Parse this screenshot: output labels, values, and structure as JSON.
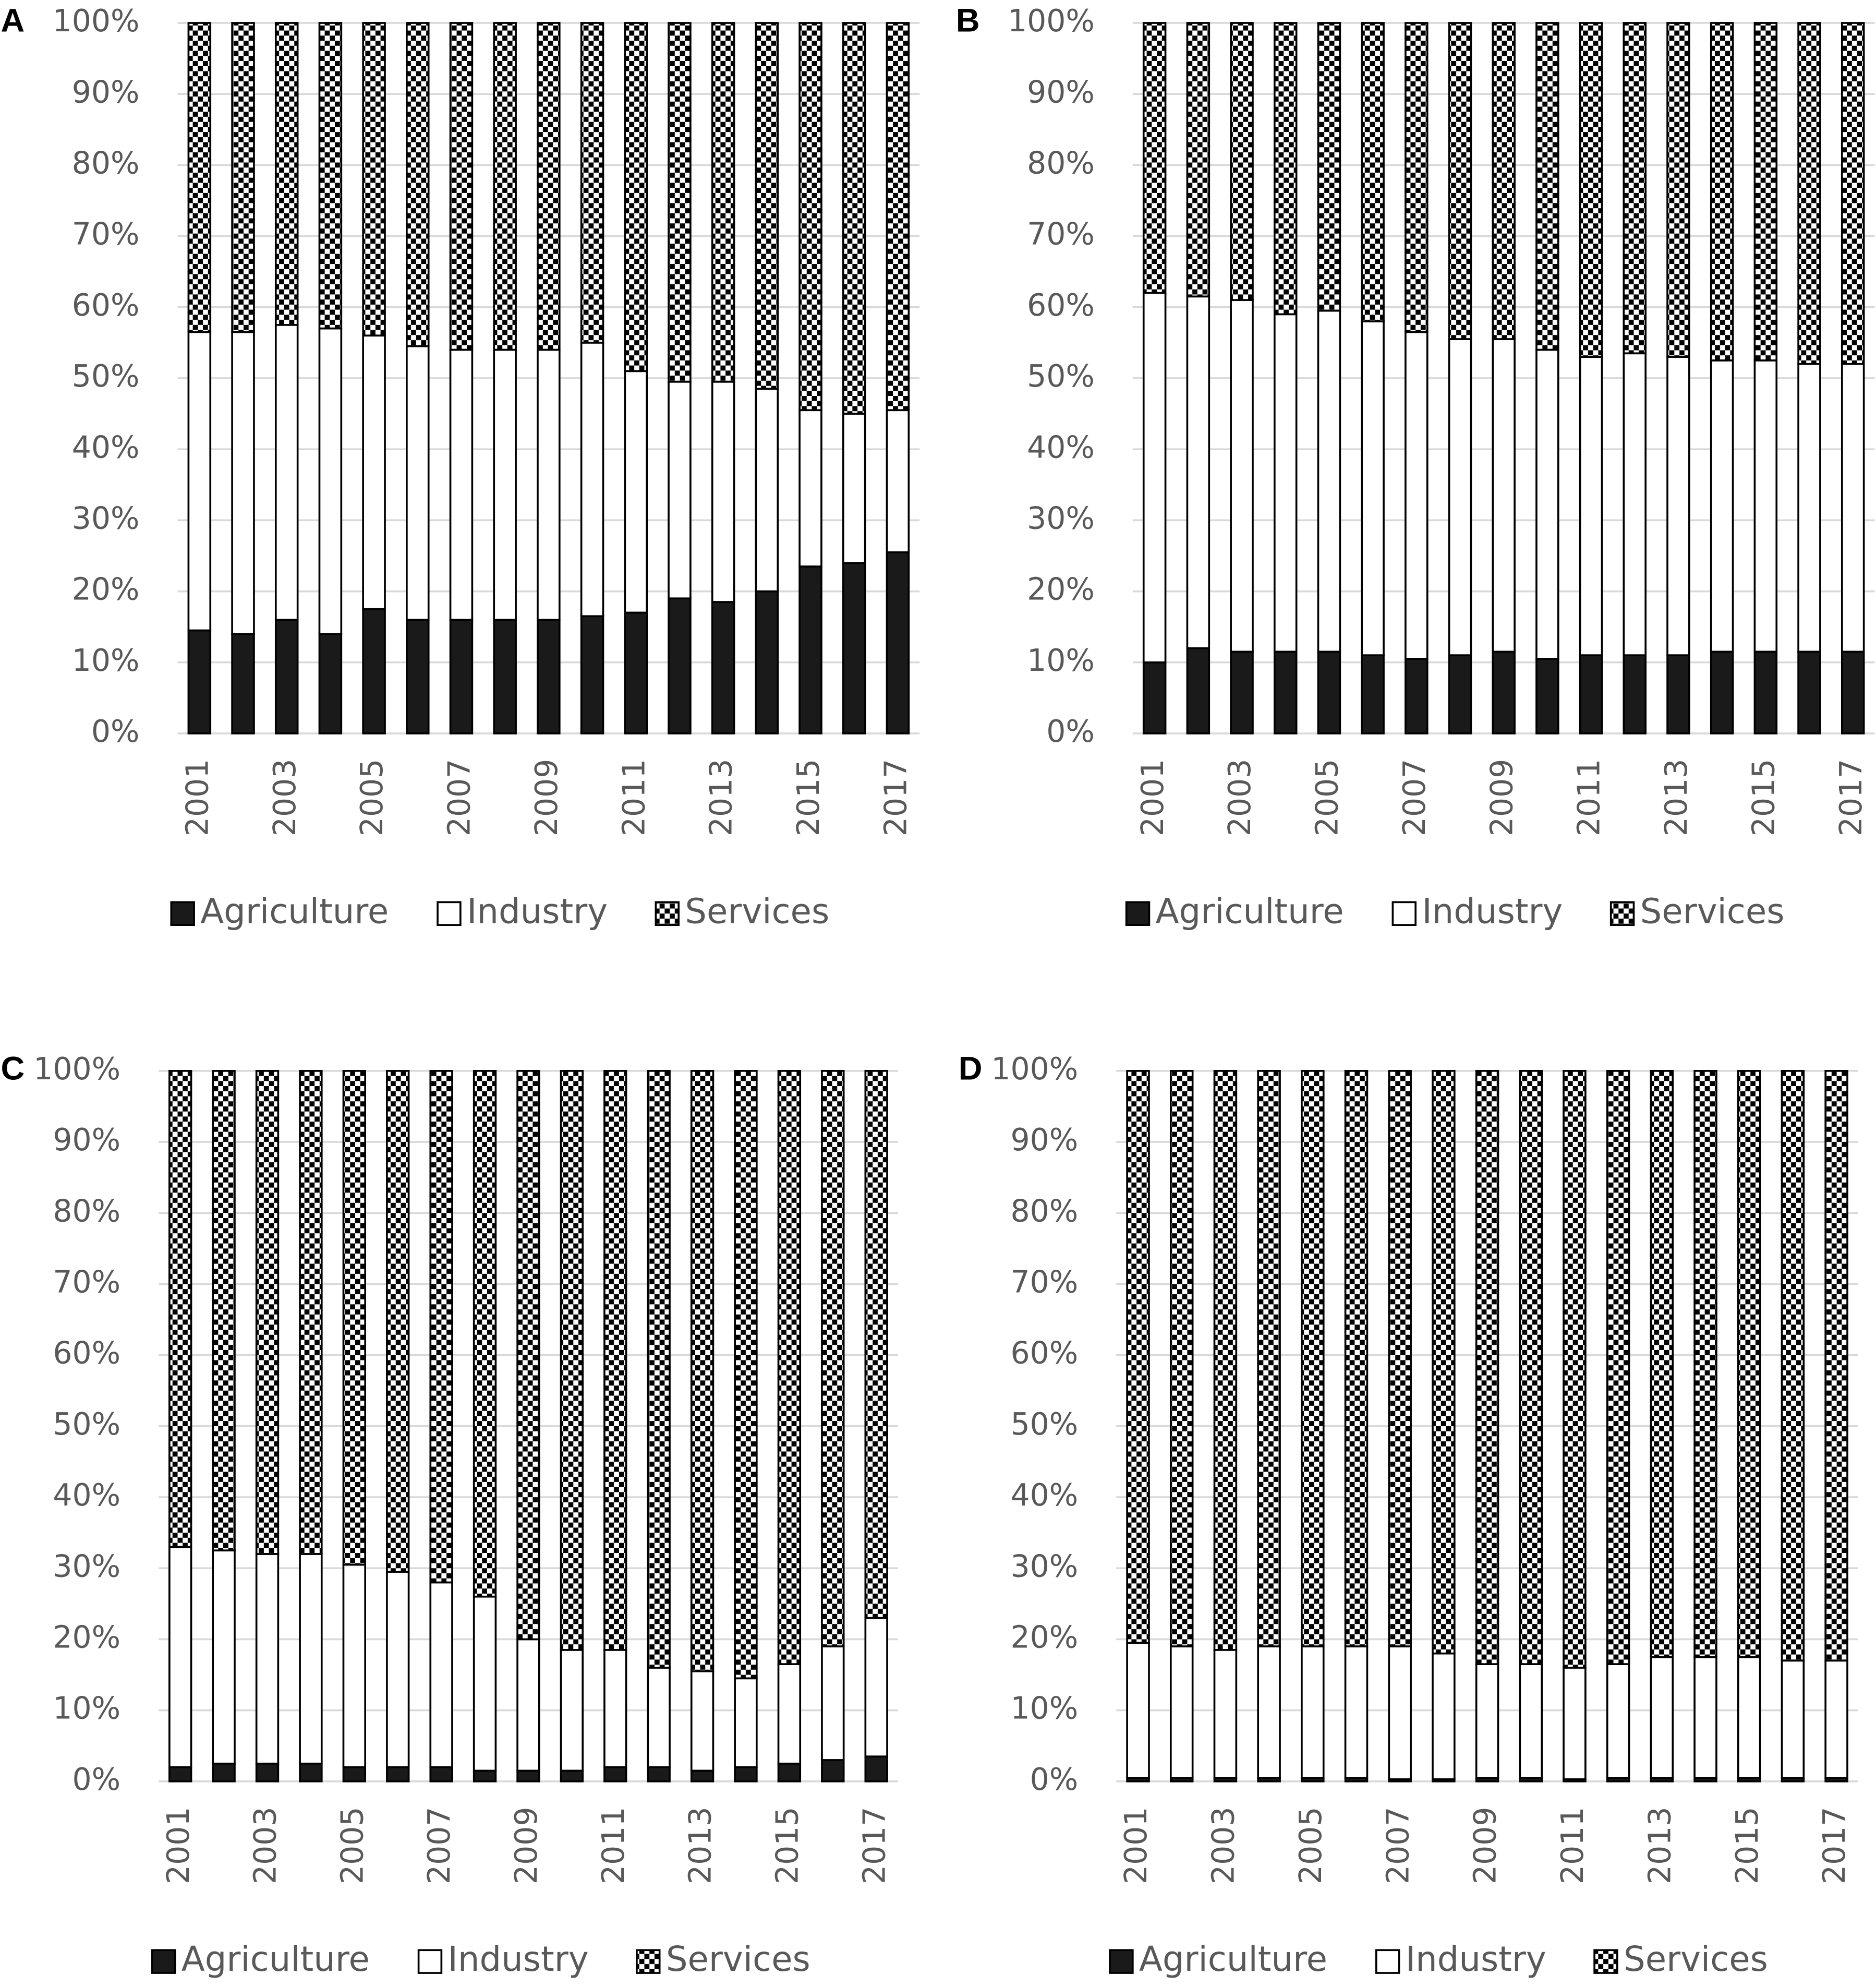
{
  "chart_data": [
    {
      "type": "bar",
      "label": "A",
      "stacked": true,
      "grid": true,
      "categories": [
        "2001",
        null,
        "2003",
        null,
        "2005",
        null,
        "2007",
        null,
        "2009",
        null,
        "2011",
        null,
        "2013",
        null,
        "2015",
        null,
        "2017"
      ],
      "ylim": [
        0,
        100
      ],
      "yticks": [
        {
          "value": 0,
          "label": "0%"
        },
        {
          "value": 10,
          "label": "10%"
        },
        {
          "value": 20,
          "label": "20%"
        },
        {
          "value": 30,
          "label": "30%"
        },
        {
          "value": 40,
          "label": "40%"
        },
        {
          "value": 50,
          "label": "50%"
        },
        {
          "value": 60,
          "label": "60%"
        },
        {
          "value": 70,
          "label": "70%"
        },
        {
          "value": 80,
          "label": "80%"
        },
        {
          "value": 90,
          "label": "90%"
        },
        {
          "value": 100,
          "label": "100%"
        }
      ],
      "series": [
        {
          "name": "Agriculture",
          "color": "#1a1a1a",
          "values": [
            14.5,
            14,
            16,
            14,
            17.5,
            16,
            16,
            16,
            16,
            16.5,
            17,
            19,
            18.5,
            20,
            23.5,
            24,
            25.5
          ]
        },
        {
          "name": "Industry",
          "color": "#ffffff",
          "values": [
            42,
            42.5,
            41.5,
            43,
            38.5,
            38.5,
            38,
            38,
            38,
            38.5,
            34,
            30.5,
            31,
            28.5,
            22,
            21,
            20
          ]
        },
        {
          "name": "Services",
          "color": "#000000",
          "pattern": "checker",
          "values": [
            43.5,
            43.5,
            42.5,
            43,
            44,
            45.5,
            46,
            46,
            46,
            45,
            49,
            50.5,
            50.5,
            51.5,
            54.5,
            55,
            54.5
          ]
        }
      ]
    },
    {
      "type": "bar",
      "label": "B",
      "stacked": true,
      "grid": true,
      "categories": [
        "2001",
        null,
        "2003",
        null,
        "2005",
        null,
        "2007",
        null,
        "2009",
        null,
        "2011",
        null,
        "2013",
        null,
        "2015",
        null,
        "2017"
      ],
      "ylim": [
        0,
        100
      ],
      "yticks": [
        {
          "value": 0,
          "label": "0%"
        },
        {
          "value": 10,
          "label": "10%"
        },
        {
          "value": 20,
          "label": "20%"
        },
        {
          "value": 30,
          "label": "30%"
        },
        {
          "value": 40,
          "label": "40%"
        },
        {
          "value": 50,
          "label": "50%"
        },
        {
          "value": 60,
          "label": "60%"
        },
        {
          "value": 70,
          "label": "70%"
        },
        {
          "value": 80,
          "label": "80%"
        },
        {
          "value": 90,
          "label": "90%"
        },
        {
          "value": 100,
          "label": "100%"
        }
      ],
      "series": [
        {
          "name": "Agriculture",
          "color": "#1a1a1a",
          "values": [
            10,
            12,
            11.5,
            11.5,
            11.5,
            11,
            10.5,
            11,
            11.5,
            10.5,
            11,
            11,
            11,
            11.5,
            11.5,
            11.5,
            11.5
          ]
        },
        {
          "name": "Industry",
          "color": "#ffffff",
          "values": [
            52,
            49.5,
            49.5,
            47.5,
            48,
            47,
            46,
            44.5,
            44,
            43.5,
            42,
            42.5,
            42,
            41,
            41,
            40.5,
            40.5
          ]
        },
        {
          "name": "Services",
          "color": "#000000",
          "pattern": "checker",
          "values": [
            38,
            38.5,
            39,
            41,
            40.5,
            42,
            43.5,
            44.5,
            44.5,
            46,
            47,
            46.5,
            47,
            47.5,
            47.5,
            48,
            48
          ]
        }
      ]
    },
    {
      "type": "bar",
      "label": "C",
      "stacked": true,
      "grid": true,
      "categories": [
        "2001",
        null,
        "2003",
        null,
        "2005",
        null,
        "2007",
        null,
        "2009",
        null,
        "2011",
        null,
        "2013",
        null,
        "2015",
        null,
        "2017"
      ],
      "ylim": [
        0,
        100
      ],
      "yticks": [
        {
          "value": 0,
          "label": "0%"
        },
        {
          "value": 10,
          "label": "10%"
        },
        {
          "value": 20,
          "label": "20%"
        },
        {
          "value": 30,
          "label": "30%"
        },
        {
          "value": 40,
          "label": "40%"
        },
        {
          "value": 50,
          "label": "50%"
        },
        {
          "value": 60,
          "label": "60%"
        },
        {
          "value": 70,
          "label": "70%"
        },
        {
          "value": 80,
          "label": "80%"
        },
        {
          "value": 90,
          "label": "90%"
        },
        {
          "value": 100,
          "label": "100%"
        }
      ],
      "series": [
        {
          "name": "Agriculture",
          "color": "#1a1a1a",
          "values": [
            2,
            2.5,
            2.5,
            2.5,
            2,
            2,
            2,
            1.5,
            1.5,
            1.5,
            2,
            2,
            1.5,
            2,
            2.5,
            3,
            3.5
          ]
        },
        {
          "name": "Industry",
          "color": "#ffffff",
          "values": [
            31,
            30,
            29.5,
            29.5,
            28.5,
            27.5,
            26,
            24.5,
            18.5,
            17,
            16.5,
            14,
            14,
            12.5,
            14,
            16,
            19.5
          ]
        },
        {
          "name": "Services",
          "color": "#000000",
          "pattern": "checker",
          "values": [
            67,
            67.5,
            68,
            68,
            69.5,
            70.5,
            72,
            74,
            80,
            81.5,
            81.5,
            84,
            84.5,
            85.5,
            83.5,
            81,
            77
          ]
        }
      ]
    },
    {
      "type": "bar",
      "label": "D",
      "stacked": true,
      "grid": true,
      "categories": [
        "2001",
        null,
        "2003",
        null,
        "2005",
        null,
        "2007",
        null,
        "2009",
        null,
        "2011",
        null,
        "2013",
        null,
        "2015",
        null,
        "2017"
      ],
      "ylim": [
        0,
        100
      ],
      "yticks": [
        {
          "value": 0,
          "label": "0%"
        },
        {
          "value": 10,
          "label": "10%"
        },
        {
          "value": 20,
          "label": "20%"
        },
        {
          "value": 30,
          "label": "30%"
        },
        {
          "value": 40,
          "label": "40%"
        },
        {
          "value": 50,
          "label": "50%"
        },
        {
          "value": 60,
          "label": "60%"
        },
        {
          "value": 70,
          "label": "70%"
        },
        {
          "value": 80,
          "label": "80%"
        },
        {
          "value": 90,
          "label": "90%"
        },
        {
          "value": 100,
          "label": "100%"
        }
      ],
      "series": [
        {
          "name": "Agriculture",
          "color": "#1a1a1a",
          "values": [
            0.5,
            0.5,
            0.5,
            0.5,
            0.5,
            0.5,
            0.3,
            0.3,
            0.5,
            0.5,
            0.3,
            0.5,
            0.5,
            0.5,
            0.5,
            0.5,
            0.5
          ]
        },
        {
          "name": "Industry",
          "color": "#ffffff",
          "values": [
            19,
            18.5,
            18,
            18.5,
            18.5,
            18.5,
            18.7,
            17.7,
            16,
            16,
            15.7,
            16,
            17,
            17,
            17,
            16.5,
            16.5
          ]
        },
        {
          "name": "Services",
          "color": "#000000",
          "pattern": "checker",
          "values": [
            80.5,
            81,
            81.5,
            81,
            81,
            81,
            81,
            82,
            83.5,
            83.5,
            84,
            83.5,
            82.5,
            82.5,
            82.5,
            83,
            83
          ]
        }
      ]
    }
  ]
}
